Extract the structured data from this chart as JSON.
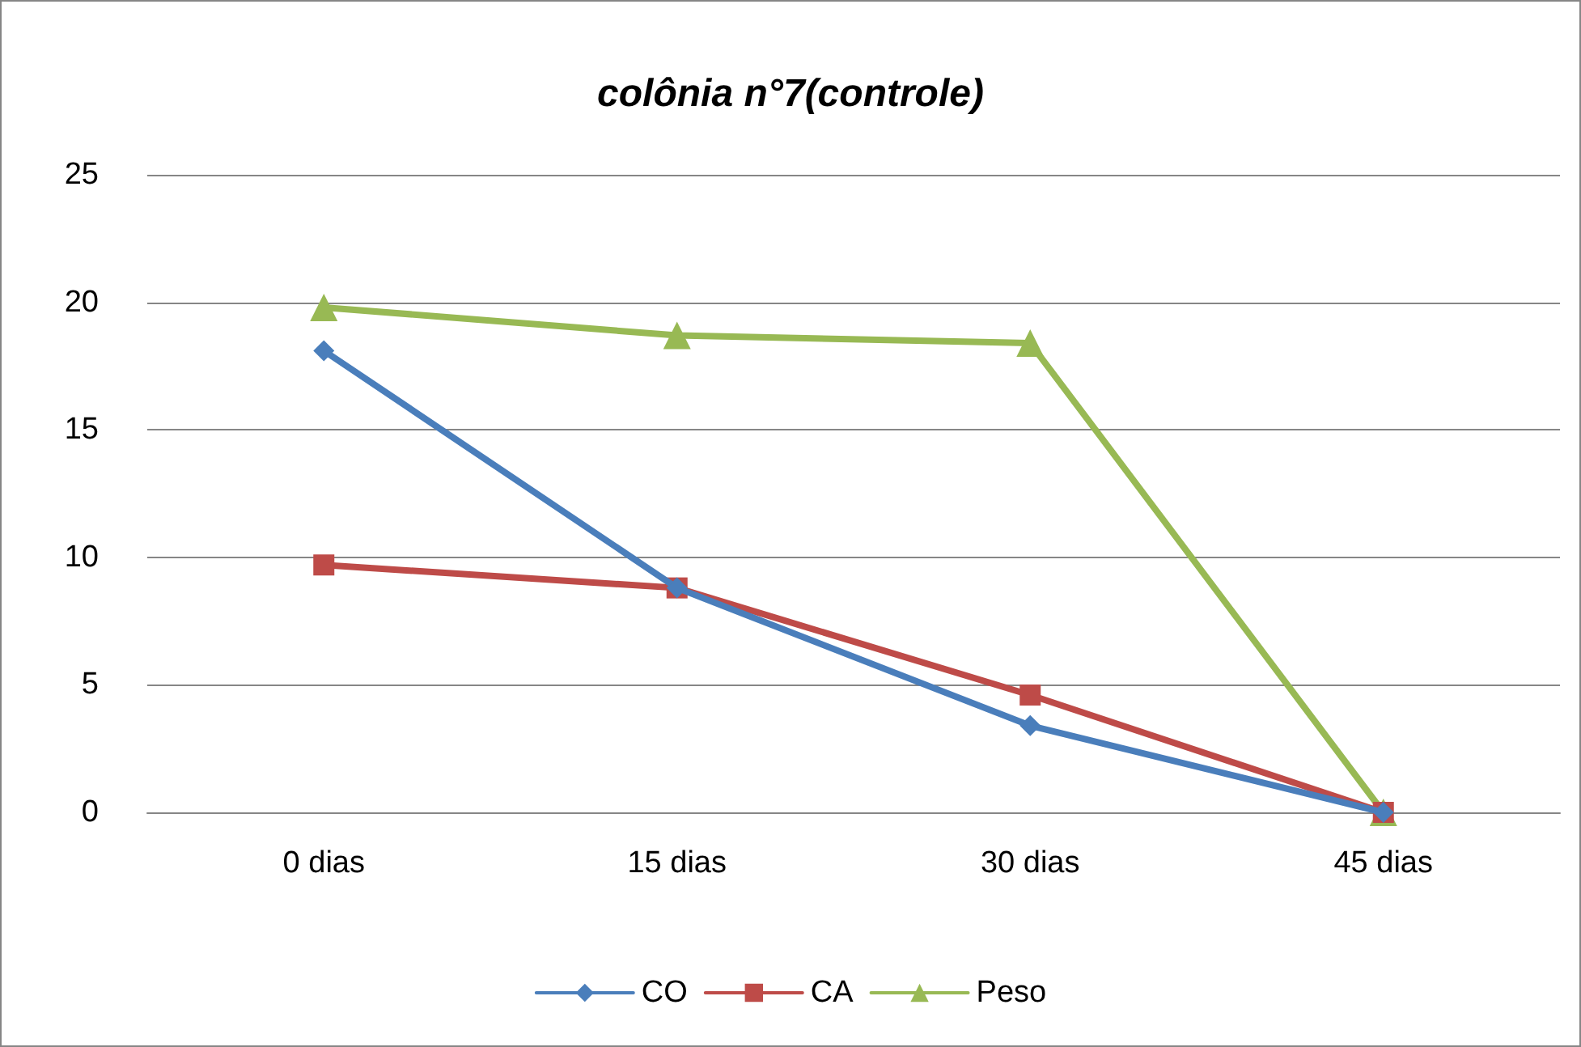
{
  "chart_data": {
    "type": "line",
    "title": "colônia n°7(controle)",
    "categories": [
      "0 dias",
      "15 dias",
      "30 dias",
      "45 dias"
    ],
    "series": [
      {
        "name": "CO",
        "color": "#4a7ebb",
        "marker": "diamond",
        "values": [
          18.1,
          8.8,
          3.4,
          0
        ]
      },
      {
        "name": "CA",
        "color": "#be4b48",
        "marker": "square",
        "values": [
          9.7,
          8.8,
          4.6,
          0
        ]
      },
      {
        "name": "Peso",
        "color": "#98b954",
        "marker": "triangle",
        "values": [
          19.8,
          18.7,
          18.4,
          0
        ]
      }
    ],
    "ylim": [
      0,
      25
    ],
    "yticks": [
      0,
      5,
      10,
      15,
      20,
      25
    ],
    "grid": "y",
    "legend": "bottom",
    "line_style": "solid"
  }
}
